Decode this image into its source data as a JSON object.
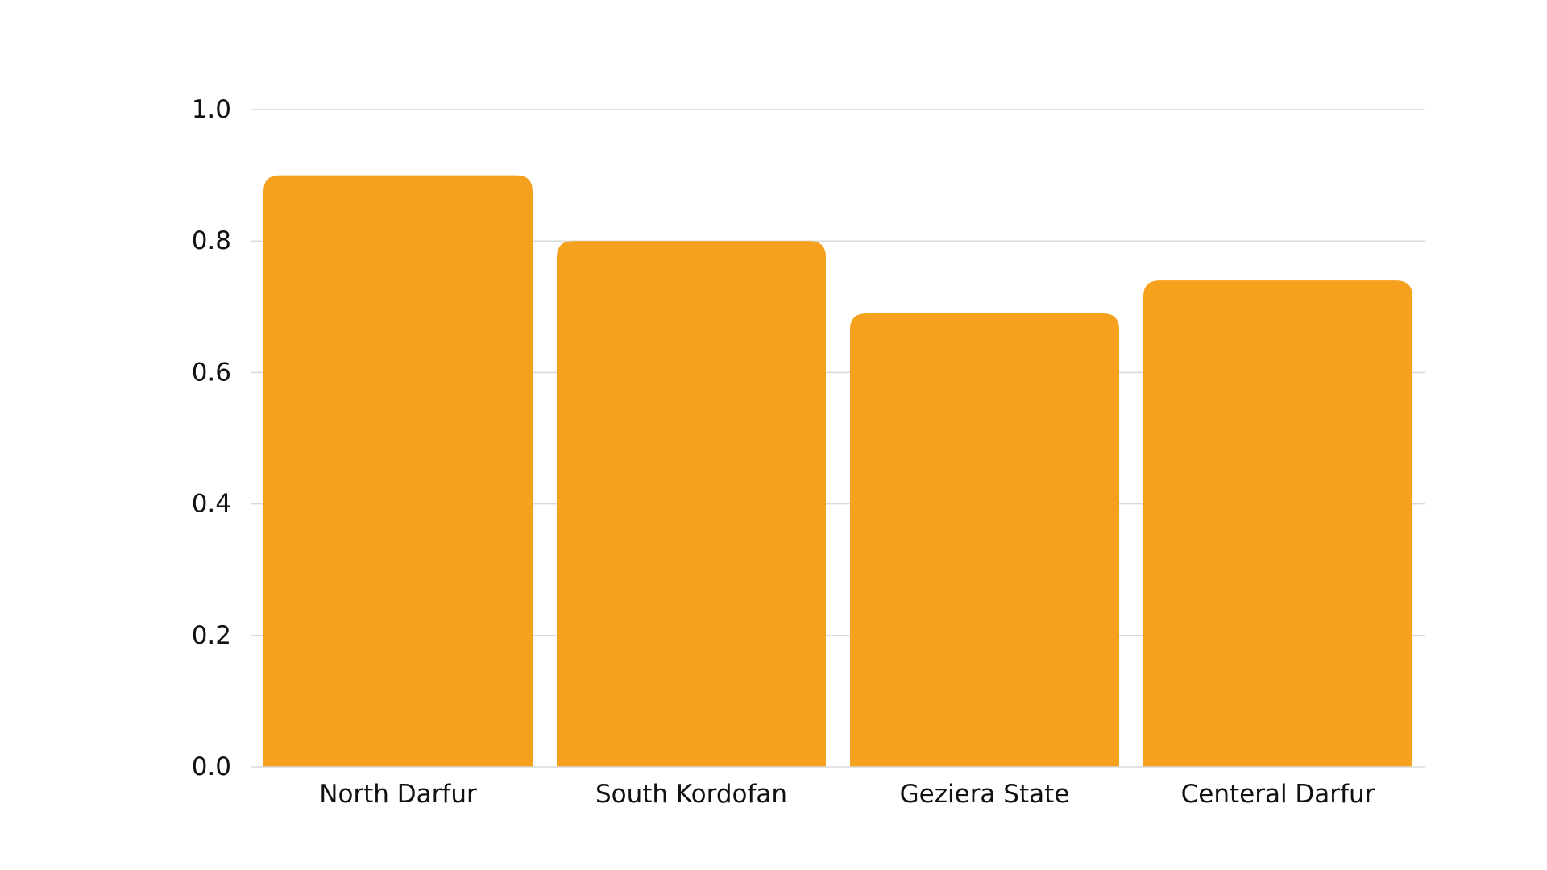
{
  "chart_data": {
    "type": "bar",
    "title": "",
    "xlabel": "",
    "ylabel": "",
    "categories": [
      "North Darfur",
      "South Kordofan",
      "Geziera State",
      "Centeral Darfur"
    ],
    "values": [
      0.9,
      0.8,
      0.69,
      0.74
    ],
    "ylim": [
      0.0,
      1.0
    ],
    "yticks": [
      "0.0",
      "0.2",
      "0.4",
      "0.6",
      "0.8",
      "1.0"
    ],
    "grid": true,
    "legend": "none",
    "bar_color": "#F6A11E",
    "grid_color": "#D9D9D9",
    "text_color": "#111111"
  }
}
